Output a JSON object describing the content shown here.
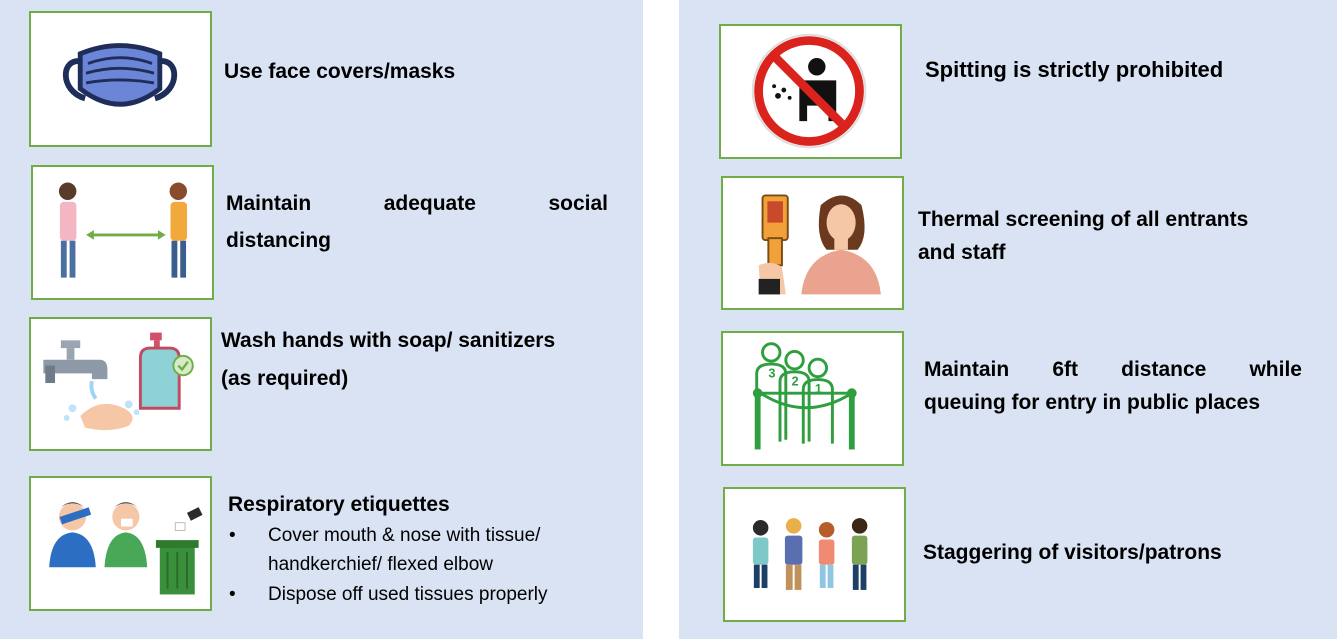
{
  "left": {
    "mask": {
      "text": "Use face covers/masks",
      "icon": "face-mask-icon"
    },
    "distancing": {
      "line1": "Maintain",
      "line1b": "adequate",
      "line1c": "social",
      "line2": "distancing",
      "icon": "social-distancing-icon"
    },
    "wash": {
      "line1": "Wash hands with soap/ sanitizers",
      "line2": "(as required)",
      "icon": "hand-wash-icon"
    },
    "respiratory": {
      "title": "Respiratory etiquettes",
      "bullet_symbol": "•",
      "b1_line1": "Cover mouth & nose with tissue/",
      "b1_line2": "handkerchief/ flexed elbow",
      "b2": "Dispose off used tissues properly",
      "icon": "respiratory-etiquette-icon"
    }
  },
  "right": {
    "spitting": {
      "text": "Spitting is strictly prohibited",
      "icon": "no-spitting-icon"
    },
    "thermal": {
      "line1": "Thermal screening of all entrants",
      "line2": "and staff",
      "icon": "thermal-screening-icon"
    },
    "queue": {
      "line1a": "Maintain",
      "line1b": "6ft",
      "line1c": "distance",
      "line1d": "while",
      "line2": "queuing for entry in public places",
      "icon": "queue-distance-icon",
      "queue_numbers": [
        "3",
        "2",
        "1"
      ]
    },
    "stagger": {
      "text": "Staggering of visitors/patrons",
      "icon": "staggered-visitors-icon"
    }
  },
  "colors": {
    "panel": "#dae3f3",
    "border": "#70ad47",
    "accent_green": "#2e9e3e"
  }
}
